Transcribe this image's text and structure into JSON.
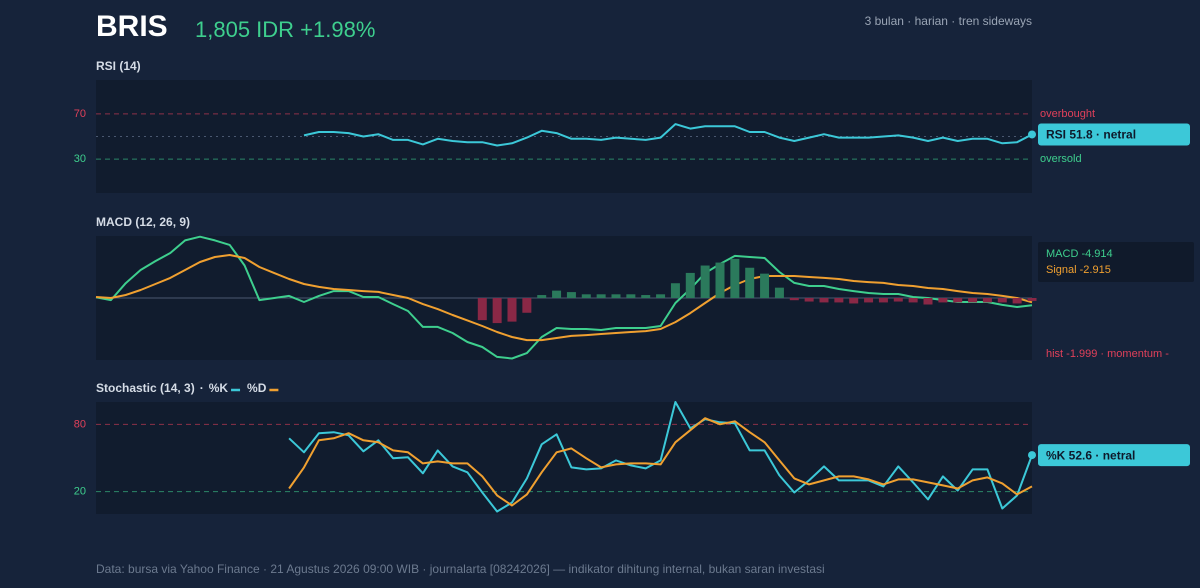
{
  "header": {
    "ticker": "BRIS",
    "quote": "1,805 IDR +1.98%",
    "meta": "3 bulan · harian · tren sideways"
  },
  "chart_data": [
    {
      "type": "line",
      "title": "RSI (14)",
      "series": [
        {
          "color": "#3cc8d8",
          "values": [
            null,
            null,
            null,
            null,
            null,
            null,
            null,
            null,
            null,
            null,
            null,
            null,
            null,
            null,
            51,
            54,
            54,
            53,
            50,
            52,
            47,
            47,
            43,
            48,
            46,
            45,
            45,
            42,
            44,
            49,
            55,
            53,
            48,
            48,
            47,
            49,
            48,
            47,
            49,
            61,
            57,
            59,
            59,
            59,
            54,
            54,
            49,
            46,
            49,
            52,
            49,
            49,
            49,
            50,
            51,
            49,
            46,
            49,
            46,
            48,
            48,
            44,
            45,
            51.8
          ]
        }
      ],
      "ylim": [
        0,
        100
      ],
      "yticks": [
        30,
        70
      ],
      "tick_colors": [
        "#3ecf8e",
        "#e0405a"
      ],
      "level_labels": [
        "oversold",
        "overbought"
      ],
      "midline": 50,
      "midline_style": "dotted",
      "callout": "RSI 51.8 · netral"
    },
    {
      "type": "line",
      "title": "MACD (12, 26, 9)",
      "series": [
        {
          "name": "MACD",
          "type": "line",
          "color": "#3ecf8e",
          "values": [
            0.5,
            -1.4,
            10,
            19,
            25,
            30.5,
            39,
            41.5,
            39,
            36,
            22,
            -1.4,
            0,
            1.4,
            -2.7,
            1.4,
            4.7,
            4.7,
            0.7,
            0.7,
            -4.1,
            -8.8,
            -19.6,
            -19.6,
            -23.7,
            -29.8,
            -33.2,
            -39.9,
            -41,
            -37.3,
            -26.4,
            -20.3,
            -21,
            -21,
            -21.7,
            -20.3,
            -20.3,
            -20.3,
            -19,
            -3.4,
            6.1,
            16.9,
            23,
            28.5,
            27.8,
            27.1,
            17.6,
            10.2,
            8.1,
            8.1,
            6.1,
            4.7,
            3.4,
            2.7,
            2.7,
            0.7,
            0,
            -1.4,
            -2.7,
            -2.7,
            -2.7,
            -4.7,
            -6.1,
            -4.914
          ]
        },
        {
          "name": "Signal",
          "type": "line",
          "color": "#f0a030",
          "values": [
            0.7,
            0,
            2,
            5.4,
            9.5,
            13.6,
            19,
            24.4,
            27.8,
            29.1,
            27.1,
            21,
            16.9,
            12.9,
            9.5,
            7.5,
            6.1,
            5.4,
            4.7,
            4.1,
            2,
            0,
            -4.1,
            -7.5,
            -11.5,
            -15.2,
            -19,
            -23,
            -26.4,
            -28.5,
            -28.5,
            -27.1,
            -25.7,
            -25.1,
            -24.4,
            -23.7,
            -23,
            -22.4,
            -21,
            -16.3,
            -10.2,
            -3.4,
            3.4,
            8.8,
            12.9,
            14.9,
            14.9,
            14.9,
            14.2,
            13.6,
            12.9,
            11.5,
            10.8,
            10.2,
            8.8,
            8.1,
            6.8,
            6.1,
            4.7,
            3.4,
            2.7,
            1.4,
            0,
            -2.915
          ]
        },
        {
          "name": "hist",
          "type": "bar",
          "color": "#2b7a5c",
          "negative_color": "#8a2846",
          "values": [
            null,
            null,
            null,
            null,
            null,
            null,
            null,
            null,
            null,
            null,
            null,
            null,
            null,
            null,
            null,
            null,
            null,
            null,
            null,
            null,
            null,
            null,
            null,
            null,
            null,
            null,
            -15,
            -17,
            -16,
            -10,
            2,
            5,
            4,
            2.5,
            2.5,
            2.5,
            2.5,
            2,
            2.5,
            10,
            17,
            22,
            24,
            26.5,
            20.5,
            16.5,
            7,
            -1.5,
            -2.4,
            -3,
            -3,
            -3.7,
            -3,
            -3,
            -2.4,
            -3,
            -4.4,
            -3,
            -3,
            -3,
            -3,
            -3,
            -3.7,
            -1.999
          ]
        }
      ],
      "ylim": [
        -42,
        42
      ],
      "midline": 0,
      "midline_style": "solid",
      "callouts": [
        "MACD -4.914",
        "Signal -2.915"
      ],
      "hist_note": "hist -1.999 · momentum -"
    },
    {
      "type": "line",
      "title": "Stochastic (14, 3)",
      "legend": true,
      "series": [
        {
          "name": "%K",
          "color": "#3cc8d8",
          "values": [
            null,
            null,
            null,
            null,
            null,
            null,
            null,
            null,
            null,
            null,
            null,
            null,
            null,
            67.6,
            55.1,
            72.1,
            73,
            70.3,
            56,
            65.8,
            49.7,
            50.6,
            36.3,
            56.8,
            42.5,
            37.2,
            19.2,
            2.2,
            10.3,
            31.8,
            62.2,
            71.2,
            41.6,
            39.8,
            40.7,
            47.9,
            43.4,
            40.7,
            47.9,
            100,
            76.5,
            84.6,
            81.9,
            81,
            56.8,
            56.8,
            34.5,
            19.2,
            30,
            42.5,
            30,
            30,
            30,
            24.6,
            42.5,
            28.2,
            13,
            33.6,
            21,
            39.8,
            39.8,
            4.9,
            16.6,
            52.6
          ]
        },
        {
          "name": "%D",
          "color": "#f0a030",
          "values": [
            null,
            null,
            null,
            null,
            null,
            null,
            null,
            null,
            null,
            null,
            null,
            null,
            null,
            22.8,
            41.6,
            65.8,
            67.6,
            72.1,
            65.8,
            64,
            56.8,
            55.1,
            45.2,
            47,
            45.2,
            45.2,
            33.6,
            16.6,
            7.6,
            17.5,
            37.2,
            55.1,
            58.6,
            49.7,
            41.6,
            44.3,
            45.2,
            45.2,
            44.3,
            64,
            74.8,
            85.5,
            80.1,
            82.8,
            73,
            64,
            47.9,
            31.8,
            26.4,
            30,
            33.6,
            33.6,
            30.9,
            26.4,
            30.9,
            30.9,
            28.2,
            25.5,
            22.8,
            30,
            32.7,
            27.3,
            17.5,
            24.6
          ]
        }
      ],
      "ylim": [
        0,
        100
      ],
      "yticks": [
        20,
        80
      ],
      "tick_colors": [
        "#3ecf8e",
        "#e0405a"
      ],
      "callout": "%K 52.6 · netral"
    }
  ],
  "footer": "Data: bursa via Yahoo Finance · 21 Agustus 2026 09:00 WIB · journalarta [08242026] — indikator dihitung internal, bukan saran investasi"
}
